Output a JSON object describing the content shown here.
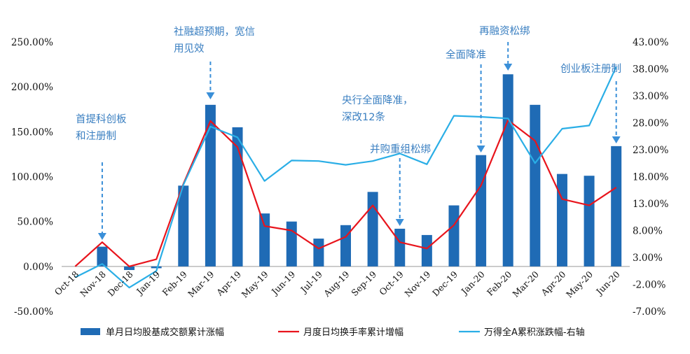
{
  "chart_data": {
    "type": "bar",
    "categories": [
      "Oct-18",
      "Nov-18",
      "Dec-18",
      "Jan-19",
      "Feb-19",
      "Mar-19",
      "Apr-19",
      "May-19",
      "Jun-19",
      "Jul-19",
      "Aug-19",
      "Sep-19",
      "Oct-19",
      "Nov-19",
      "Dec-19",
      "Jan-20",
      "Feb-20",
      "Mar-20",
      "Apr-20",
      "May-20",
      "Jun-20"
    ],
    "left_axis": {
      "ticks": [
        "-50.00%",
        "0.00%",
        "50.00%",
        "100.00%",
        "150.00%",
        "200.00%",
        "250.00%"
      ],
      "ylim": [
        -50,
        250
      ]
    },
    "right_axis": {
      "ticks": [
        "-7.00%",
        "-2.00%",
        "3.00%",
        "8.00%",
        "13.00%",
        "18.00%",
        "23.00%",
        "28.00%",
        "33.00%",
        "38.00%",
        "43.00%"
      ],
      "ylim": [
        -7,
        43
      ]
    },
    "series": [
      {
        "name": "单月日均股基成交额累计涨幅",
        "kind": "bar",
        "axis": "left",
        "color": "#1f6bb5",
        "values": [
          0,
          22,
          -4,
          -2,
          90,
          180,
          155,
          59,
          50,
          31,
          46,
          83,
          42,
          35,
          68,
          124,
          214,
          180,
          103,
          101,
          134
        ]
      },
      {
        "name": "月度日均换手率累计增幅",
        "kind": "line",
        "axis": "left",
        "color": "#e8141c",
        "values": [
          0,
          27,
          0,
          8,
          92,
          162,
          133,
          45,
          40,
          20,
          33,
          68,
          27,
          20,
          46,
          90,
          163,
          140,
          75,
          68,
          88
        ]
      },
      {
        "name": "万得全A累积涨跌幅-右轴",
        "kind": "line",
        "axis": "right",
        "color": "#2aaee6",
        "values": [
          -0.7,
          1.8,
          -2.6,
          0.5,
          16.5,
          27.3,
          25.3,
          17.2,
          21.0,
          20.9,
          20.2,
          20.9,
          22.3,
          20.3,
          29.3,
          29.1,
          28.8,
          20.5,
          26.9,
          27.5,
          38.4
        ]
      }
    ],
    "annotations": [
      {
        "lines": [
          "首提科创板",
          "和注册制"
        ],
        "index": 1
      },
      {
        "lines": [
          "社融超预期，宽信",
          "用见效"
        ],
        "index": 5
      },
      {
        "lines": [
          "央行全面降准，",
          "深改12条"
        ],
        "index": 11
      },
      {
        "lines": [
          "并购重组松绑"
        ],
        "index": 12
      },
      {
        "lines": [
          "全面降准"
        ],
        "index": 15
      },
      {
        "lines": [
          "再融资松绑"
        ],
        "index": 16
      },
      {
        "lines": [
          "创业板注册制"
        ],
        "index": 20
      }
    ]
  }
}
